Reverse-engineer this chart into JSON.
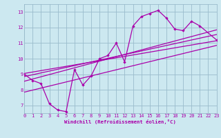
{
  "x_data": [
    0,
    1,
    2,
    3,
    4,
    5,
    6,
    7,
    8,
    9,
    10,
    11,
    12,
    13,
    14,
    15,
    16,
    17,
    18,
    19,
    20,
    21,
    23
  ],
  "y_main": [
    9.0,
    8.6,
    8.4,
    7.1,
    6.7,
    6.6,
    9.3,
    8.3,
    8.9,
    10.0,
    10.2,
    11.0,
    9.8,
    12.1,
    12.7,
    12.9,
    13.1,
    12.6,
    11.9,
    11.8,
    12.4,
    12.1,
    11.2
  ],
  "regression_lines": [
    {
      "x_start": 0,
      "y_start": 9.05,
      "x_end": 23,
      "y_end": 11.15
    },
    {
      "x_start": 0,
      "y_start": 8.85,
      "x_end": 23,
      "y_end": 11.55
    },
    {
      "x_start": 0,
      "y_start": 8.55,
      "x_end": 23,
      "y_end": 11.85
    },
    {
      "x_start": 0,
      "y_start": 7.85,
      "x_end": 23,
      "y_end": 10.85
    }
  ],
  "bg_color": "#cce8f0",
  "line_color": "#aa00aa",
  "grid_color": "#99bbcc",
  "xlabel": "Windchill (Refroidissement éolien,°C)",
  "xlabel_color": "#aa00aa",
  "tick_color": "#aa00aa",
  "xlim": [
    0,
    23
  ],
  "ylim": [
    6.5,
    13.5
  ],
  "yticks": [
    7,
    8,
    9,
    10,
    11,
    12,
    13
  ],
  "xticks": [
    0,
    1,
    2,
    3,
    4,
    5,
    6,
    7,
    8,
    9,
    10,
    11,
    12,
    13,
    14,
    15,
    16,
    17,
    18,
    19,
    20,
    21,
    22,
    23
  ]
}
